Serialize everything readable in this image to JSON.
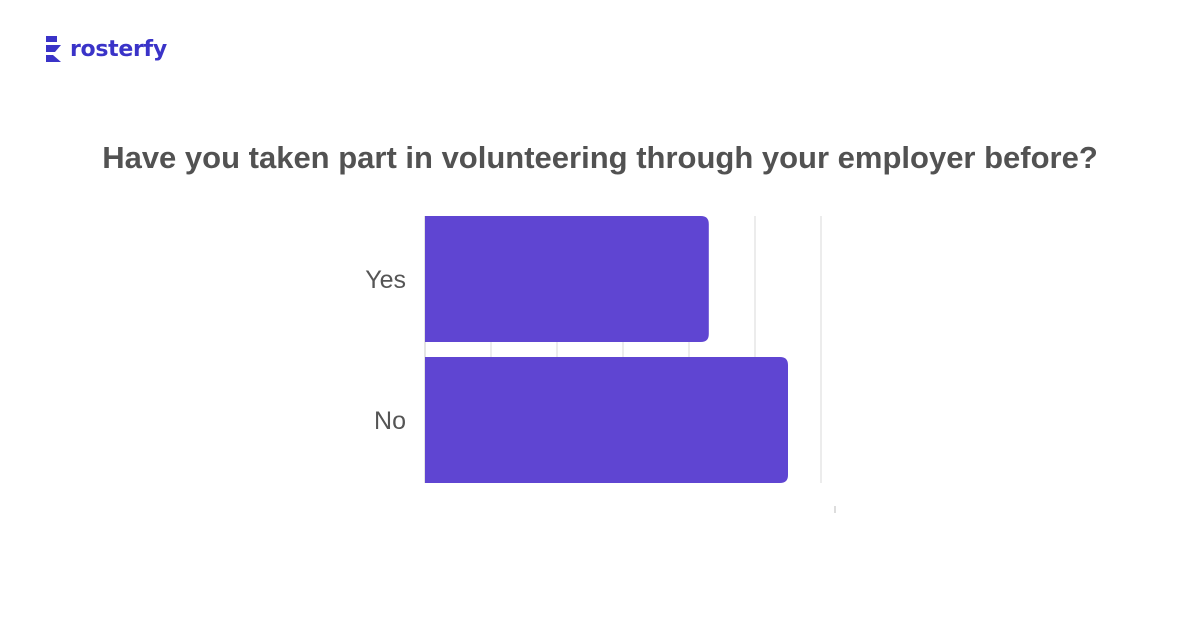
{
  "brand": {
    "name": "rosterfy",
    "color": "#3a33c8"
  },
  "chart_data": {
    "type": "bar",
    "orientation": "horizontal",
    "title": "Have you taken part in volunteering through your employer before?",
    "categories": [
      "Yes",
      "No"
    ],
    "values": [
      43,
      55
    ],
    "xlim": [
      0,
      62
    ],
    "gridlines": [
      10,
      20,
      30,
      40,
      50,
      60
    ],
    "grid": true,
    "bar_color": "#5f45d2",
    "label_color": "#555555",
    "grid_color": "#d9d9d9"
  }
}
